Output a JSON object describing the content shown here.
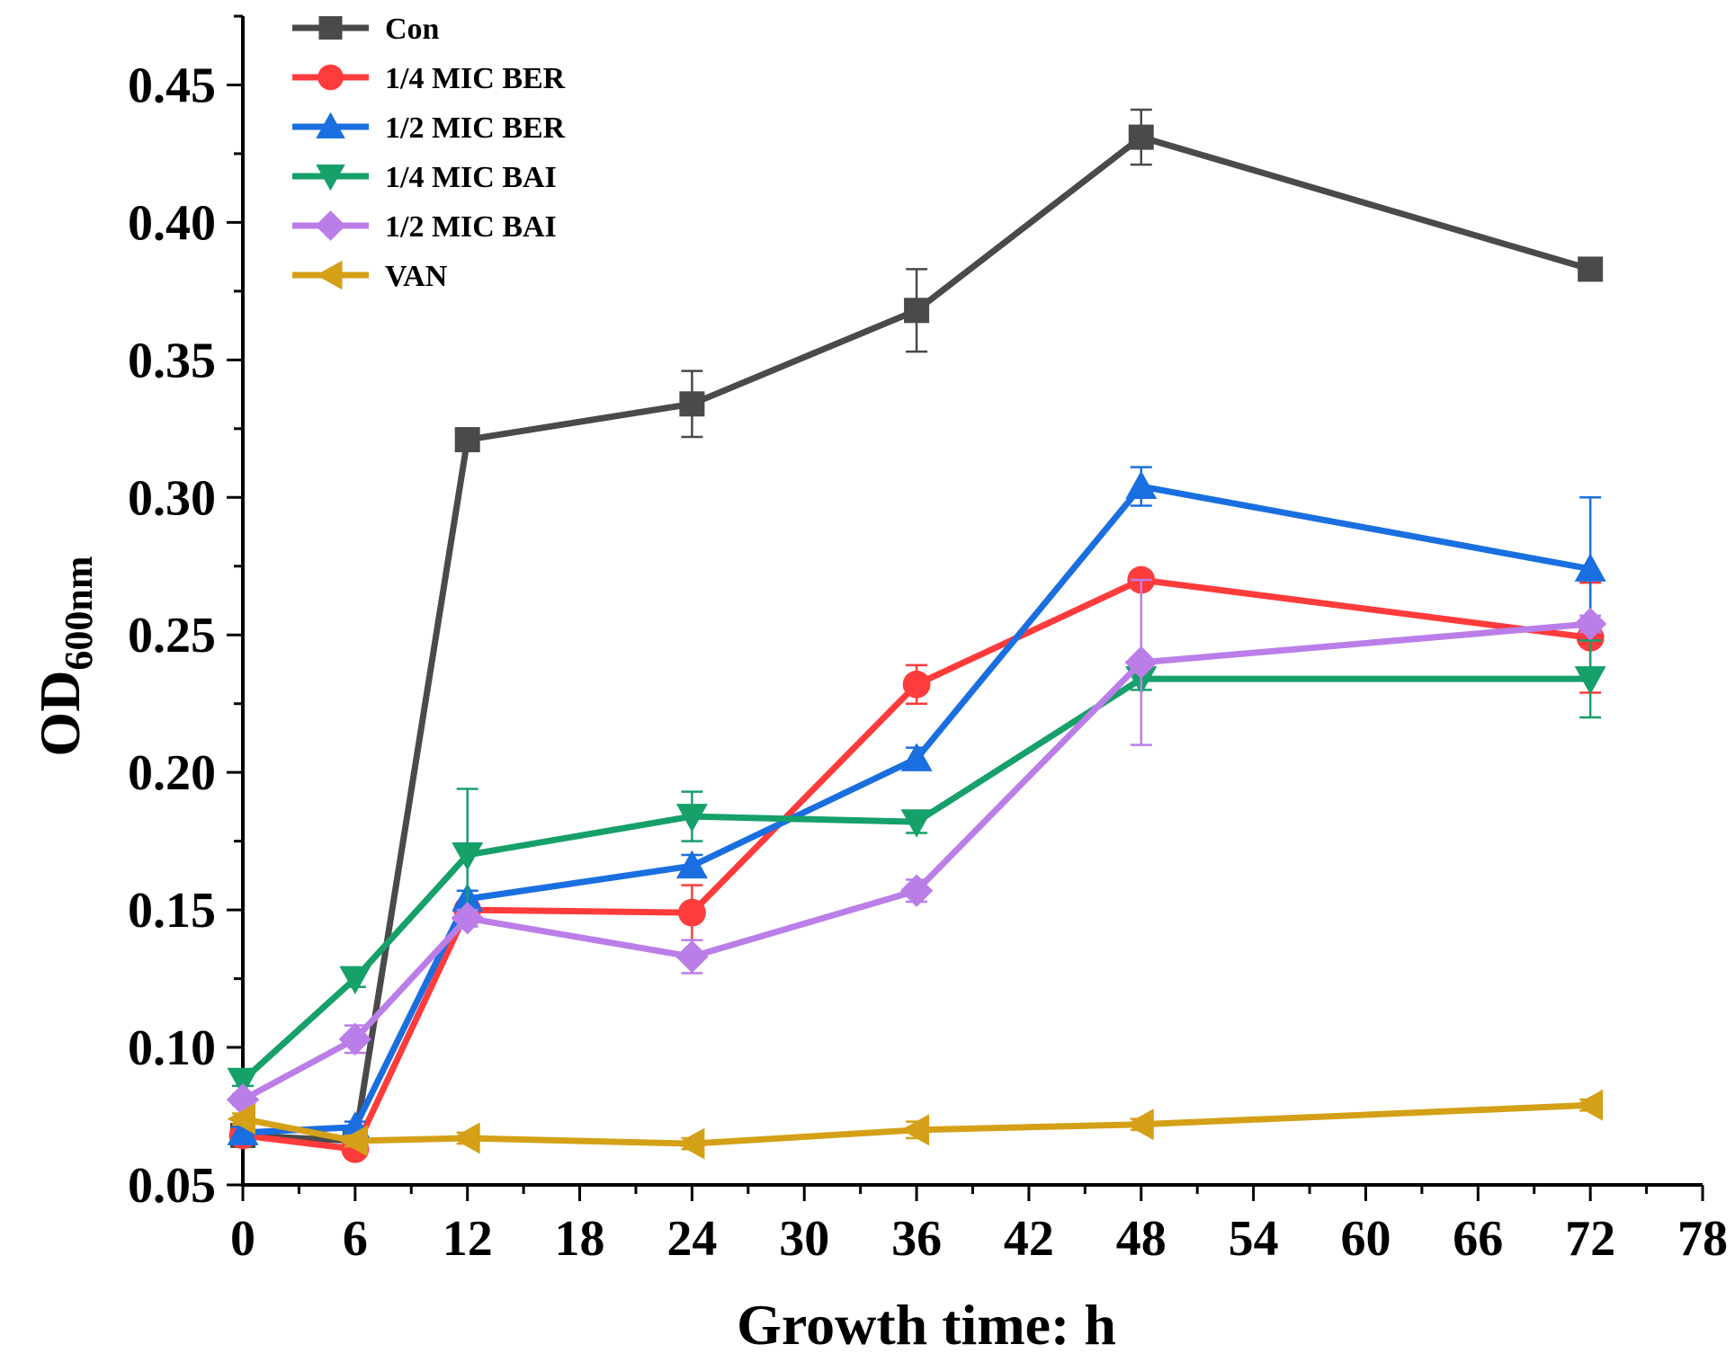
{
  "chart_data": {
    "type": "line",
    "title": "",
    "xlabel": "Growth time: h",
    "ylabel_main": "OD",
    "ylabel_sub": "600nm",
    "xlim": [
      0,
      78
    ],
    "ylim": [
      0.05,
      0.475
    ],
    "xticks": [
      0,
      6,
      12,
      18,
      24,
      30,
      36,
      42,
      48,
      54,
      60,
      66,
      72,
      78
    ],
    "xtick_labels": [
      "0",
      "6",
      "12",
      "18",
      "24",
      "30",
      "36",
      "42",
      "48",
      "54",
      "60",
      "66",
      "72",
      "78"
    ],
    "yticks": [
      0.05,
      0.1,
      0.15,
      0.2,
      0.25,
      0.3,
      0.35,
      0.4,
      0.45
    ],
    "ytick_labels": [
      "0.05",
      "0.10",
      "0.15",
      "0.20",
      "0.25",
      "0.30",
      "0.35",
      "0.40",
      "0.45"
    ],
    "grid": false,
    "legend_position": "top-left",
    "x": [
      0,
      6,
      12,
      24,
      36,
      48,
      72
    ],
    "series": [
      {
        "name": "Con",
        "color": "#4a4a4a",
        "marker": "square",
        "values": [
          0.068,
          0.066,
          0.321,
          0.334,
          0.368,
          0.431,
          0.383
        ],
        "errors": [
          0.002,
          0.002,
          0.003,
          0.012,
          0.015,
          0.01,
          0.002
        ]
      },
      {
        "name": "1/4 MIC BER",
        "color": "#ff3b3b",
        "marker": "circle",
        "values": [
          0.068,
          0.063,
          0.15,
          0.149,
          0.232,
          0.27,
          0.249
        ],
        "errors": [
          0.002,
          0.002,
          0.003,
          0.01,
          0.007,
          0.003,
          0.02
        ]
      },
      {
        "name": "1/2 MIC BER",
        "color": "#1a6fe0",
        "marker": "triangle-up",
        "values": [
          0.069,
          0.071,
          0.154,
          0.166,
          0.205,
          0.304,
          0.274
        ],
        "errors": [
          0.002,
          0.002,
          0.003,
          0.004,
          0.004,
          0.007,
          0.026
        ]
      },
      {
        "name": "1/4 MIC BAI",
        "color": "#16a06a",
        "marker": "triangle-down",
        "values": [
          0.088,
          0.125,
          0.17,
          0.184,
          0.182,
          0.234,
          0.234
        ],
        "errors": [
          0.002,
          0.003,
          0.024,
          0.009,
          0.004,
          0.004,
          0.014
        ]
      },
      {
        "name": "1/2 MIC BAI",
        "color": "#bb7ee8",
        "marker": "diamond",
        "values": [
          0.081,
          0.103,
          0.147,
          0.133,
          0.157,
          0.24,
          0.254
        ],
        "errors": [
          0.002,
          0.005,
          0.003,
          0.006,
          0.004,
          0.03,
          0.003
        ]
      },
      {
        "name": "VAN",
        "color": "#d4a017",
        "marker": "triangle-left",
        "values": [
          0.074,
          0.066,
          0.067,
          0.065,
          0.07,
          0.072,
          0.079
        ],
        "errors": [
          0.002,
          0.002,
          0.002,
          0.002,
          0.003,
          0.002,
          0.002
        ]
      }
    ]
  }
}
